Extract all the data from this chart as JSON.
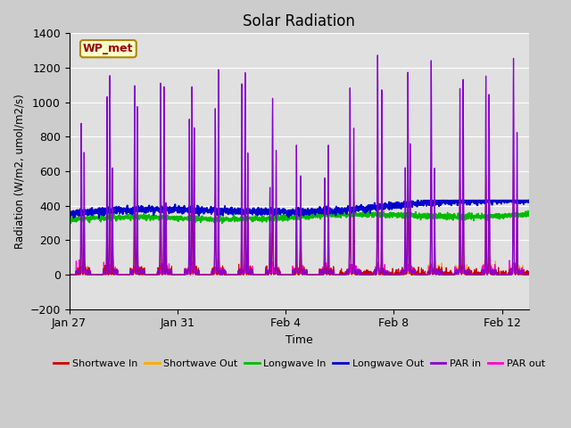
{
  "title": "Solar Radiation",
  "ylabel": "Radiation (W/m2, umol/m2/s)",
  "xlabel": "Time",
  "ylim": [
    -200,
    1400
  ],
  "yticks": [
    -200,
    0,
    200,
    400,
    600,
    800,
    1000,
    1200,
    1400
  ],
  "station_label": "WP_met",
  "x_tick_labels": [
    "Jan 27",
    "Jan 31",
    "Feb 4",
    "Feb 8",
    "Feb 12"
  ],
  "tick_positions": [
    0,
    4,
    8,
    12,
    16
  ],
  "n_days": 17,
  "colors": {
    "shortwave_in": "#cc0000",
    "shortwave_out": "#ffaa00",
    "longwave_in": "#00bb00",
    "longwave_out": "#0000cc",
    "par_in": "#8800cc",
    "par_out": "#ff00cc"
  },
  "legend_labels": [
    "Shortwave In",
    "Shortwave Out",
    "Longwave In",
    "Longwave Out",
    "PAR in",
    "PAR out"
  ],
  "fig_facecolor": "#cccccc",
  "ax_facecolor": "#e0e0e0",
  "grid_color": "#ffffff"
}
